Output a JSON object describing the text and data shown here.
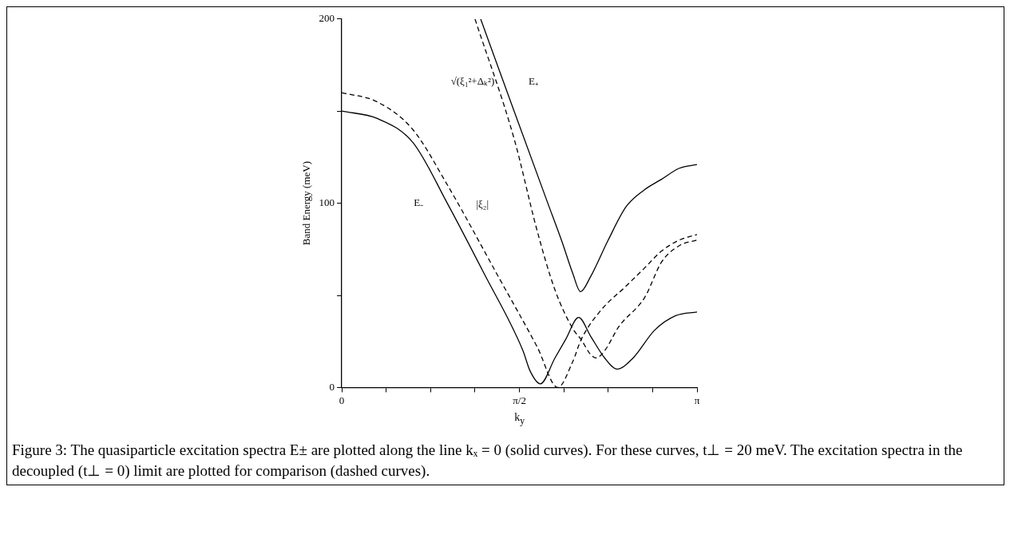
{
  "chart_data": {
    "type": "line",
    "xlabel": "k$_{y}$",
    "ylabel": "Band Energy (meV)",
    "xlim": [
      0,
      3.1416
    ],
    "ylim": [
      0,
      200
    ],
    "xticks": [
      {
        "value": 0,
        "label": "0"
      },
      {
        "value": 0.3927,
        "label": null
      },
      {
        "value": 0.7854,
        "label": null
      },
      {
        "value": 1.1781,
        "label": null
      },
      {
        "value": 1.5708,
        "label": "π/2"
      },
      {
        "value": 1.9635,
        "label": null
      },
      {
        "value": 2.3562,
        "label": null
      },
      {
        "value": 2.7489,
        "label": null
      },
      {
        "value": 3.1416,
        "label": "π"
      }
    ],
    "yticks": [
      0,
      {
        "value": 50,
        "label": null
      },
      100,
      {
        "value": 150,
        "label": null
      },
      200
    ],
    "grid": false,
    "legend": false,
    "marker": "none",
    "series": [
      {
        "name": "E₋",
        "color": "#000000",
        "line_style": "solid",
        "x": [
          0,
          0.314,
          0.628,
          0.933,
          1.257,
          1.602,
          1.665,
          1.756,
          1.885,
          1.979,
          2.095,
          2.199,
          2.325,
          2.435,
          2.576,
          2.765,
          2.953,
          3.1416
        ],
        "values": [
          150,
          146,
          133,
          100,
          62,
          20,
          9,
          2,
          16,
          26,
          38,
          28,
          16,
          10,
          16,
          31,
          39,
          41
        ]
      },
      {
        "name": "E₊",
        "color": "#000000",
        "line_style": "solid",
        "x": [
          1.228,
          1.524,
          1.822,
          1.948,
          2.042,
          2.111,
          2.199,
          2.356,
          2.513,
          2.67,
          2.827,
          2.985,
          3.1416
        ],
        "values": [
          200,
          150,
          100,
          79,
          62,
          52,
          60,
          80,
          98,
          107,
          113,
          119,
          121
        ]
      },
      {
        "name": "|ξ₂|",
        "color": "#000000",
        "line_style": "dashed",
        "x": [
          0,
          0.314,
          0.628,
          0.933,
          1.395,
          1.728,
          1.91,
          2.042,
          2.117,
          2.293,
          2.513,
          2.68,
          2.827,
          2.985,
          3.1416
        ],
        "values": [
          160,
          155,
          140,
          110,
          59,
          22,
          0,
          14,
          26,
          42,
          55,
          65,
          74,
          80,
          83
        ]
      },
      {
        "name": "√(ξ₁²+Δₖ²)",
        "color": "#000000",
        "line_style": "dashed",
        "x": [
          1.178,
          1.524,
          1.728,
          1.885,
          2.042,
          2.117,
          2.199,
          2.249,
          2.325,
          2.45,
          2.68,
          2.827,
          2.985,
          3.1416
        ],
        "values": [
          200,
          135,
          85,
          53,
          32,
          26,
          18,
          16,
          20,
          33,
          49,
          68,
          77,
          80
        ]
      }
    ],
    "annotations": [
      "Figure 3: The quasiparticle excitation spectra E± are plotted along the line kₓ = 0 (solid curves). For these curves, t⊥ = 20 meV. The excitation spectra in the decoupled (t⊥ = 0) limit are plotted for comparison (dashed curves)."
    ]
  }
}
